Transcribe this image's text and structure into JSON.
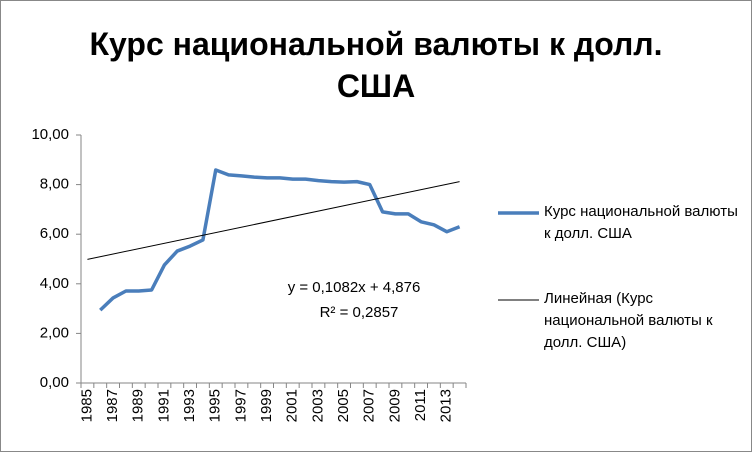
{
  "chart_data": {
    "type": "line",
    "title": "Курс национальной валюты к долл. США",
    "categories": [
      "1985",
      null,
      "1987",
      null,
      "1989",
      null,
      "1991",
      null,
      "1993",
      null,
      "1995",
      null,
      "1997",
      null,
      "1999",
      null,
      "2001",
      null,
      "2003",
      null,
      "2005",
      null,
      "2007",
      null,
      "2009",
      null,
      "2011",
      null,
      "2013",
      null
    ],
    "series": [
      {
        "name": "Курс национальной валюты к долл. США",
        "color": "#4a7ebb",
        "values": [
          null,
          2.94,
          3.43,
          3.71,
          3.71,
          3.75,
          4.76,
          5.32,
          5.52,
          5.77,
          8.59,
          8.39,
          8.35,
          8.3,
          8.27,
          8.27,
          8.22,
          8.22,
          8.16,
          8.12,
          8.1,
          8.12,
          8.0,
          6.9,
          6.82,
          6.82,
          6.5,
          6.38,
          6.1,
          6.3
        ]
      }
    ],
    "trendline": {
      "name": "Линейная (Курс национальной валюты к долл. США)",
      "color": "#000000",
      "slope": 0.1082,
      "intercept": 4.876,
      "equation": "y = 0,1082x + 4,876",
      "r2_label": "R² = 0,2857"
    },
    "ylim": [
      0,
      10
    ],
    "yticks": [
      {
        "value": 0,
        "label": "0,00"
      },
      {
        "value": 2,
        "label": "2,00"
      },
      {
        "value": 4,
        "label": "4,00"
      },
      {
        "value": 6,
        "label": "6,00"
      },
      {
        "value": 8,
        "label": "8,00"
      },
      {
        "value": 10,
        "label": "10,00"
      }
    ],
    "legend": "right"
  }
}
